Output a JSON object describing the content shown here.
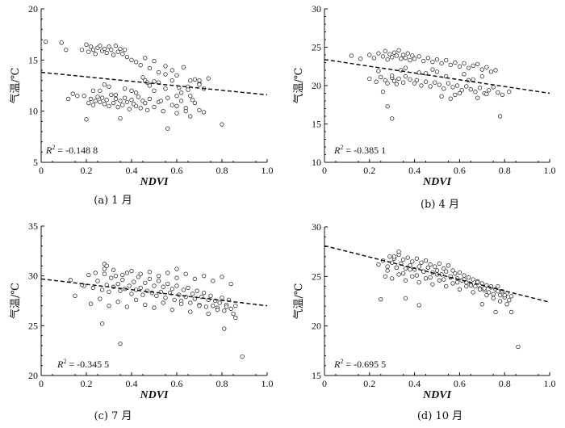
{
  "chart_data": [
    {
      "type": "scatter",
      "xlabel": "NDVI",
      "ylabel": "气温/℃",
      "caption": "(a) 1 月",
      "r2": {
        "label": "R",
        "sup": "2",
        "value": " = -0.148 8"
      },
      "xlim": [
        0,
        1.0
      ],
      "ylim": [
        5,
        20
      ],
      "xticks": [
        "0",
        "0.2",
        "0.4",
        "0.6",
        "0.8",
        "1.0"
      ],
      "yticks": [
        "5",
        "10",
        "15",
        "20"
      ],
      "trendline": {
        "x": [
          0,
          1.0
        ],
        "y": [
          13.8,
          11.6
        ]
      },
      "points": {
        "x": [
          0.02,
          0.09,
          0.12,
          0.14,
          0.18,
          0.2,
          0.21,
          0.22,
          0.23,
          0.24,
          0.25,
          0.26,
          0.27,
          0.28,
          0.29,
          0.3,
          0.31,
          0.32,
          0.33,
          0.34,
          0.35,
          0.36,
          0.37,
          0.38,
          0.4,
          0.42,
          0.44,
          0.46,
          0.48,
          0.5,
          0.52,
          0.55,
          0.58,
          0.6,
          0.63,
          0.66,
          0.7,
          0.74,
          0.19,
          0.21,
          0.22,
          0.23,
          0.24,
          0.25,
          0.26,
          0.27,
          0.28,
          0.29,
          0.3,
          0.31,
          0.32,
          0.33,
          0.34,
          0.35,
          0.36,
          0.37,
          0.38,
          0.39,
          0.4,
          0.41,
          0.42,
          0.43,
          0.44,
          0.45,
          0.46,
          0.47,
          0.48,
          0.5,
          0.52,
          0.54,
          0.56,
          0.58,
          0.6,
          0.62,
          0.64,
          0.66,
          0.68,
          0.7,
          0.72,
          0.48,
          0.5,
          0.52,
          0.55,
          0.58,
          0.62,
          0.65,
          0.68,
          0.7,
          0.45,
          0.5,
          0.55,
          0.6,
          0.65,
          0.11,
          0.16,
          0.2,
          0.26,
          0.3,
          0.35,
          0.4,
          0.46,
          0.53,
          0.56,
          0.6,
          0.64,
          0.66,
          0.7,
          0.8,
          0.23,
          0.28,
          0.33,
          0.37,
          0.42,
          0.47,
          0.61,
          0.67,
          0.72
        ],
        "y": [
          16.8,
          16.7,
          11.2,
          11.7,
          16.0,
          16.5,
          15.8,
          16.3,
          16.0,
          15.6,
          16.2,
          16.4,
          15.9,
          16.1,
          15.7,
          16.3,
          16.0,
          15.5,
          16.4,
          15.8,
          16.1,
          15.6,
          16.0,
          15.3,
          15.0,
          14.8,
          14.5,
          15.2,
          14.2,
          14.9,
          13.8,
          14.4,
          14.0,
          13.5,
          14.3,
          13.0,
          12.7,
          13.2,
          11.5,
          10.8,
          11.2,
          10.6,
          11.0,
          11.4,
          10.9,
          11.3,
          10.7,
          11.1,
          10.5,
          11.6,
          10.8,
          11.2,
          10.4,
          11.0,
          10.6,
          11.3,
          10.9,
          10.2,
          11.1,
          10.7,
          10.5,
          11.4,
          10.3,
          11.0,
          10.8,
          10.1,
          11.2,
          10.4,
          10.9,
          10.0,
          11.3,
          10.6,
          9.8,
          11.0,
          10.3,
          9.5,
          10.8,
          10.1,
          9.9,
          12.5,
          12.0,
          12.8,
          12.2,
          13.0,
          11.8,
          12.4,
          13.1,
          12.6,
          13.3,
          12.9,
          13.6,
          11.5,
          12.1,
          16.0,
          11.5,
          9.2,
          12.0,
          12.4,
          9.3,
          12.0,
          13.0,
          11.0,
          8.3,
          10.5,
          10.0,
          11.5,
          13.0,
          8.7,
          12.0,
          12.6,
          11.6,
          12.2,
          11.8,
          12.8,
          12.3,
          11.1,
          12.2
        ]
      }
    },
    {
      "type": "scatter",
      "xlabel": "NDVI",
      "ylabel": "气温/℃",
      "caption": "(b) 4 月",
      "r2": {
        "label": "R",
        "sup": "2",
        "value": " = -0.385 1"
      },
      "xlim": [
        0,
        1.0
      ],
      "ylim": [
        10,
        30
      ],
      "xticks": [
        "0",
        "0.2",
        "0.4",
        "0.6",
        "0.8",
        "1.0"
      ],
      "yticks": [
        "10",
        "15",
        "20",
        "25",
        "30"
      ],
      "trendline": {
        "x": [
          0,
          1.0
        ],
        "y": [
          23.4,
          19.0
        ]
      },
      "points": {
        "x": [
          0.12,
          0.16,
          0.2,
          0.22,
          0.24,
          0.26,
          0.27,
          0.28,
          0.29,
          0.3,
          0.31,
          0.32,
          0.33,
          0.34,
          0.35,
          0.36,
          0.37,
          0.38,
          0.39,
          0.4,
          0.42,
          0.44,
          0.46,
          0.48,
          0.5,
          0.52,
          0.54,
          0.56,
          0.58,
          0.6,
          0.62,
          0.64,
          0.66,
          0.68,
          0.7,
          0.72,
          0.74,
          0.76,
          0.2,
          0.23,
          0.25,
          0.27,
          0.28,
          0.3,
          0.31,
          0.32,
          0.33,
          0.35,
          0.36,
          0.38,
          0.4,
          0.41,
          0.43,
          0.45,
          0.47,
          0.49,
          0.51,
          0.53,
          0.55,
          0.57,
          0.59,
          0.61,
          0.63,
          0.65,
          0.67,
          0.69,
          0.71,
          0.73,
          0.75,
          0.77,
          0.79,
          0.28,
          0.3,
          0.26,
          0.56,
          0.58,
          0.62,
          0.66,
          0.7,
          0.78,
          0.5,
          0.45,
          0.34,
          0.24,
          0.52,
          0.6,
          0.68,
          0.72,
          0.82,
          0.3,
          0.36,
          0.42,
          0.48,
          0.54,
          0.64
        ],
        "y": [
          23.9,
          23.5,
          24.0,
          23.6,
          24.2,
          23.8,
          24.5,
          23.4,
          24.1,
          23.7,
          24.3,
          23.9,
          24.6,
          23.5,
          24.0,
          23.6,
          24.2,
          23.3,
          23.9,
          23.5,
          23.8,
          23.2,
          23.6,
          23.1,
          23.4,
          22.9,
          23.3,
          22.7,
          23.0,
          22.5,
          22.9,
          22.3,
          22.6,
          22.8,
          22.1,
          22.4,
          21.8,
          22.0,
          20.9,
          20.5,
          21.1,
          20.7,
          20.3,
          21.0,
          20.6,
          20.2,
          20.9,
          20.4,
          21.2,
          20.8,
          20.3,
          20.7,
          20.0,
          20.5,
          19.9,
          20.4,
          20.1,
          19.6,
          20.3,
          19.8,
          20.0,
          19.4,
          19.9,
          19.5,
          19.2,
          19.7,
          19.0,
          19.4,
          19.8,
          19.1,
          18.8,
          17.3,
          15.7,
          19.2,
          18.3,
          18.8,
          21.5,
          20.8,
          21.2,
          16.0,
          21.8,
          21.6,
          22.0,
          21.9,
          18.6,
          19.0,
          18.4,
          18.9,
          19.2,
          21.3,
          22.3,
          21.7,
          22.1,
          21.2,
          20.7
        ]
      }
    },
    {
      "type": "scatter",
      "xlabel": "NDVI",
      "ylabel": "气温/℃",
      "caption": "(c) 7 月",
      "r2": {
        "label": "R",
        "sup": "2",
        "value": " = -0.345 5"
      },
      "xlim": [
        0,
        1.0
      ],
      "ylim": [
        20,
        35
      ],
      "xticks": [
        "0",
        "0.2",
        "0.4",
        "0.6",
        "0.8",
        "1.0"
      ],
      "yticks": [
        "20",
        "25",
        "30",
        "35"
      ],
      "trendline": {
        "x": [
          0,
          1.0
        ],
        "y": [
          29.7,
          27.0
        ]
      },
      "points": {
        "x": [
          0.13,
          0.15,
          0.19,
          0.21,
          0.23,
          0.25,
          0.27,
          0.28,
          0.29,
          0.3,
          0.31,
          0.32,
          0.33,
          0.34,
          0.35,
          0.36,
          0.37,
          0.38,
          0.39,
          0.4,
          0.41,
          0.42,
          0.43,
          0.44,
          0.45,
          0.46,
          0.47,
          0.48,
          0.49,
          0.5,
          0.51,
          0.52,
          0.53,
          0.54,
          0.55,
          0.56,
          0.57,
          0.58,
          0.59,
          0.6,
          0.61,
          0.62,
          0.63,
          0.64,
          0.65,
          0.66,
          0.67,
          0.68,
          0.69,
          0.7,
          0.71,
          0.72,
          0.73,
          0.74,
          0.75,
          0.76,
          0.77,
          0.78,
          0.79,
          0.8,
          0.81,
          0.82,
          0.83,
          0.84,
          0.85,
          0.86,
          0.22,
          0.26,
          0.3,
          0.34,
          0.38,
          0.42,
          0.46,
          0.5,
          0.54,
          0.58,
          0.62,
          0.66,
          0.7,
          0.74,
          0.78,
          0.82,
          0.86,
          0.24,
          0.28,
          0.32,
          0.36,
          0.4,
          0.44,
          0.48,
          0.52,
          0.56,
          0.6,
          0.64,
          0.68,
          0.72,
          0.76,
          0.8,
          0.84,
          0.27,
          0.35,
          0.6,
          0.81,
          0.89,
          0.28,
          0.18,
          0.29
        ],
        "y": [
          29.6,
          28.0,
          29.0,
          30.1,
          28.8,
          29.5,
          28.6,
          30.2,
          29.1,
          28.4,
          29.8,
          28.9,
          30.0,
          29.2,
          28.5,
          29.6,
          28.7,
          30.3,
          29.0,
          28.2,
          29.4,
          28.6,
          29.9,
          28.8,
          28.1,
          29.3,
          28.5,
          29.7,
          28.3,
          29.0,
          28.0,
          29.5,
          28.4,
          28.9,
          27.8,
          29.2,
          28.3,
          28.7,
          27.6,
          29.0,
          28.1,
          27.5,
          28.6,
          27.9,
          28.8,
          27.3,
          28.2,
          27.7,
          28.5,
          27.1,
          27.9,
          28.3,
          26.9,
          27.6,
          28.0,
          27.0,
          27.5,
          26.8,
          27.3,
          27.8,
          26.5,
          27.1,
          27.6,
          26.7,
          26.2,
          27.0,
          27.2,
          27.7,
          27.0,
          27.4,
          26.9,
          27.6,
          27.1,
          26.8,
          27.3,
          26.6,
          27.2,
          26.4,
          27.0,
          26.2,
          26.6,
          26.9,
          25.8,
          30.3,
          30.7,
          30.6,
          30.1,
          30.5,
          30.2,
          30.4,
          30.0,
          30.3,
          29.8,
          30.2,
          29.7,
          30.0,
          29.5,
          29.9,
          29.2,
          25.2,
          23.2,
          30.7,
          24.7,
          21.9,
          31.2,
          29.1,
          31.0
        ]
      }
    },
    {
      "type": "scatter",
      "xlabel": "NDVI",
      "ylabel": "气温/℃",
      "caption": "(d) 10 月",
      "r2": {
        "label": "R",
        "sup": "2",
        "value": " = -0.695 5"
      },
      "xlim": [
        0,
        1.0
      ],
      "ylim": [
        15,
        30
      ],
      "xticks": [
        "0",
        "0.2",
        "0.4",
        "0.6",
        "0.8",
        "1.0"
      ],
      "yticks": [
        "15",
        "20",
        "25",
        "30"
      ],
      "trendline": {
        "x": [
          0,
          1.0
        ],
        "y": [
          28.1,
          22.4
        ]
      },
      "points": {
        "x": [
          0.24,
          0.26,
          0.28,
          0.29,
          0.3,
          0.31,
          0.32,
          0.33,
          0.34,
          0.35,
          0.36,
          0.37,
          0.38,
          0.39,
          0.4,
          0.41,
          0.42,
          0.43,
          0.44,
          0.45,
          0.46,
          0.47,
          0.48,
          0.49,
          0.5,
          0.51,
          0.52,
          0.53,
          0.54,
          0.55,
          0.56,
          0.57,
          0.58,
          0.59,
          0.6,
          0.61,
          0.62,
          0.63,
          0.64,
          0.65,
          0.66,
          0.67,
          0.68,
          0.69,
          0.7,
          0.71,
          0.72,
          0.73,
          0.74,
          0.75,
          0.76,
          0.77,
          0.78,
          0.79,
          0.8,
          0.81,
          0.82,
          0.83,
          0.27,
          0.3,
          0.33,
          0.36,
          0.39,
          0.42,
          0.45,
          0.48,
          0.51,
          0.54,
          0.57,
          0.6,
          0.63,
          0.66,
          0.69,
          0.72,
          0.75,
          0.78,
          0.81,
          0.28,
          0.32,
          0.35,
          0.38,
          0.41,
          0.44,
          0.47,
          0.5,
          0.53,
          0.56,
          0.59,
          0.62,
          0.65,
          0.68,
          0.71,
          0.74,
          0.77,
          0.8,
          0.83,
          0.25,
          0.36,
          0.42,
          0.7,
          0.76,
          0.86,
          0.31,
          0.33
        ],
        "y": [
          26.2,
          26.6,
          26.0,
          27.0,
          26.4,
          26.8,
          25.9,
          27.2,
          26.3,
          26.7,
          25.8,
          26.9,
          26.1,
          26.5,
          25.7,
          26.8,
          26.0,
          26.4,
          25.5,
          26.6,
          25.9,
          26.2,
          25.4,
          26.0,
          25.6,
          26.3,
          25.2,
          25.8,
          25.5,
          26.1,
          24.9,
          25.6,
          25.3,
          24.8,
          25.4,
          24.6,
          25.1,
          24.4,
          24.9,
          24.2,
          24.7,
          24.0,
          24.5,
          23.8,
          24.3,
          23.6,
          24.1,
          23.4,
          23.9,
          23.2,
          23.7,
          24.0,
          23.1,
          23.5,
          22.9,
          23.3,
          22.6,
          23.0,
          25.0,
          24.8,
          25.2,
          24.6,
          25.0,
          24.4,
          24.8,
          24.2,
          24.6,
          24.0,
          24.3,
          23.7,
          24.0,
          23.4,
          23.7,
          23.1,
          22.8,
          22.5,
          22.2,
          25.6,
          25.9,
          25.3,
          25.7,
          25.1,
          25.5,
          24.9,
          25.2,
          24.7,
          25.0,
          24.4,
          24.7,
          24.1,
          24.4,
          23.8,
          24.0,
          23.5,
          23.1,
          21.4,
          22.7,
          22.8,
          22.1,
          22.2,
          21.4,
          17.9,
          27.0,
          27.5
        ]
      }
    }
  ]
}
